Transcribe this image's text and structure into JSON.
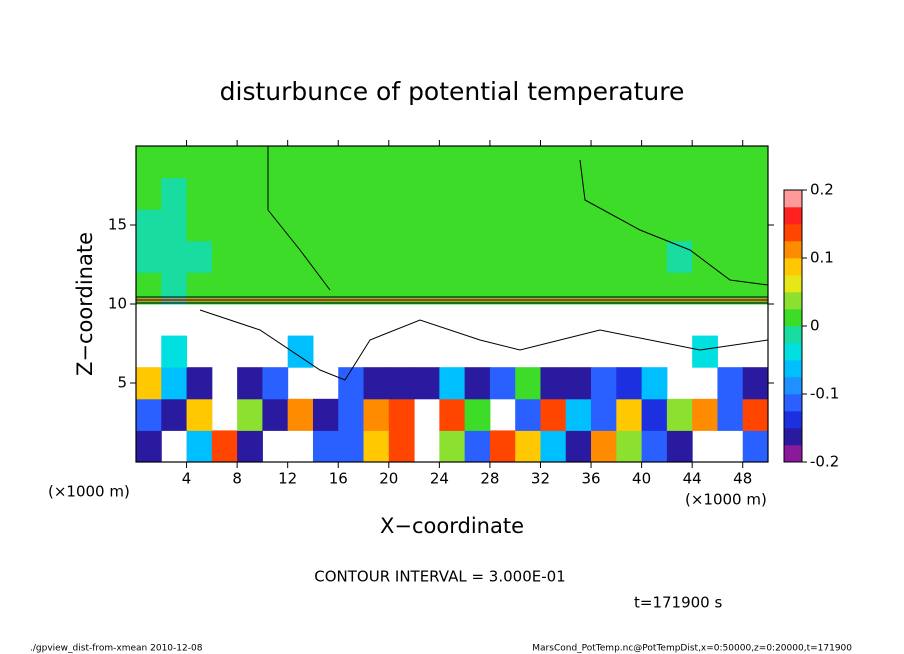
{
  "chart_data": {
    "type": "contour",
    "title": "disturbunce of potential temperature",
    "x_label": "X−coordinate",
    "y_label": "Z−coordinate",
    "x_unit": "(×1000 m)",
    "note": "CONTOUR INTERVAL = 3.000E-01",
    "time_label": "t=171900 s",
    "footer_left": "./gpview_dist-from-xmean  2010-12-08",
    "footer_right": "MarsCond_PotTemp.nc@PotTempDist,x=0:50000,z=0:20000,t=171900",
    "xlim": [
      0,
      50
    ],
    "ylim": [
      0,
      20
    ],
    "xticks": [
      4,
      8,
      12,
      16,
      20,
      24,
      28,
      32,
      36,
      40,
      44,
      48
    ],
    "yticks": [
      5,
      10,
      15
    ],
    "x": [
      1,
      3,
      5,
      7,
      9,
      11,
      13,
      15,
      17,
      19,
      21,
      23,
      25,
      27,
      29,
      31,
      33,
      35,
      37,
      39,
      41,
      43,
      45,
      47,
      49
    ],
    "y": [
      1,
      3,
      5,
      7,
      9,
      11,
      13,
      15,
      17,
      19
    ],
    "z": [
      [
        -0.15,
        null,
        -0.05,
        0.15,
        -0.15,
        null,
        null,
        -0.12,
        -0.1,
        0.1,
        0.15,
        null,
        0.05,
        -0.1,
        0.15,
        0.1,
        -0.05,
        -0.15,
        0.12,
        0.05,
        -0.1,
        -0.15,
        null,
        null,
        -0.12
      ],
      [
        -0.12,
        -0.15,
        0.1,
        null,
        0.05,
        -0.15,
        0.12,
        -0.16,
        -0.1,
        0.12,
        0.15,
        null,
        0.14,
        0.02,
        null,
        -0.1,
        0.15,
        -0.05,
        -0.12,
        0.1,
        -0.14,
        0.05,
        0.12,
        -0.1,
        0.15
      ],
      [
        0.1,
        -0.05,
        -0.15,
        null,
        -0.17,
        -0.1,
        null,
        null,
        -0.12,
        -0.15,
        -0.15,
        -0.17,
        -0.05,
        -0.15,
        -0.12,
        0.02,
        -0.15,
        -0.16,
        -0.1,
        -0.14,
        -0.05,
        null,
        null,
        -0.12,
        -0.15
      ],
      [
        null,
        -0.03,
        null,
        null,
        null,
        null,
        -0.05,
        null,
        null,
        null,
        null,
        null,
        null,
        null,
        null,
        null,
        null,
        null,
        null,
        null,
        null,
        null,
        -0.03,
        null,
        null
      ],
      [
        null,
        null,
        null,
        null,
        null,
        null,
        null,
        null,
        null,
        null,
        null,
        null,
        null,
        null,
        null,
        null,
        null,
        null,
        null,
        null,
        null,
        null,
        null,
        null,
        null
      ],
      [
        0.01,
        -0.01,
        0.01,
        0.01,
        0.01,
        0.01,
        0.01,
        0.01,
        0.01,
        0.01,
        0.01,
        0.01,
        0.01,
        0.01,
        0.01,
        0.02,
        0.01,
        0.01,
        0.01,
        0.01,
        0.01,
        0.01,
        0.01,
        0.01,
        0.01
      ],
      [
        -0.01,
        -0.02,
        -0.01,
        0.01,
        0.01,
        0.01,
        0.01,
        0.01,
        0.01,
        0.01,
        0.01,
        0.01,
        0.01,
        0.01,
        0.01,
        0.02,
        0.02,
        0.01,
        0.01,
        0.01,
        0.01,
        -0.01,
        0.01,
        0.01,
        0.01
      ],
      [
        -0.01,
        -0.01,
        0.01,
        0.01,
        0.01,
        0.01,
        0.01,
        0.01,
        0.01,
        0.01,
        0.01,
        0.01,
        0.01,
        0.01,
        0.01,
        0.01,
        0.01,
        0.01,
        0.01,
        0.01,
        0.01,
        0.01,
        0.01,
        0.01,
        0.01
      ],
      [
        0.01,
        -0.01,
        0.01,
        0.01,
        0.01,
        0.01,
        0.01,
        0.01,
        0.01,
        0.01,
        0.01,
        0.01,
        0.01,
        0.01,
        0.01,
        0.01,
        0.01,
        0.01,
        0.01,
        0.01,
        0.01,
        0.01,
        0.01,
        0.01,
        0.01
      ],
      [
        0.01,
        0.01,
        0.01,
        0.01,
        0.01,
        0.01,
        0.01,
        0.01,
        0.01,
        0.01,
        0.01,
        0.01,
        0.01,
        0.01,
        0.01,
        0.01,
        0.01,
        0.01,
        0.01,
        0.01,
        0.01,
        0.01,
        0.01,
        0.01,
        0.01
      ]
    ],
    "levels": [
      -0.2,
      -0.175,
      -0.15,
      -0.125,
      -0.1,
      -0.075,
      -0.05,
      -0.025,
      0,
      0.025,
      0.05,
      0.075,
      0.1,
      0.125,
      0.15,
      0.175,
      0.2
    ],
    "colors": [
      "#8b1a9b",
      "#2a1aa0",
      "#1c30e0",
      "#2a60ff",
      "#1e90ff",
      "#00bfff",
      "#00e0e0",
      "#18dca0",
      "#3cdc28",
      "#8ce030",
      "#e6e619",
      "#ffc800",
      "#ff8c00",
      "#ff4500",
      "#ff2020",
      "#ff9a9a"
    ],
    "colorbar_ticks": [
      -0.2,
      -0.1,
      0,
      0.1,
      0.2
    ]
  }
}
